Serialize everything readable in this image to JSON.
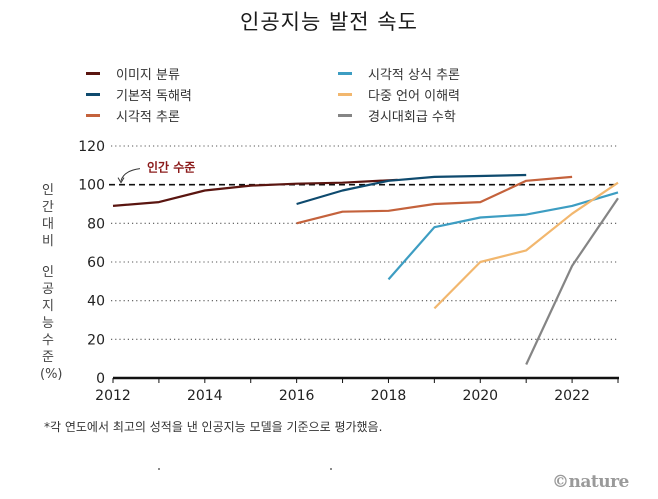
{
  "title": "인공지능 발전 속도",
  "footnote": "*각 연도에서 최고의 성적을 낸 인공지능 모델을 기준으로 평가했음.",
  "credit": "©nature",
  "chart_data": {
    "type": "line",
    "title": "인공지능 발전 속도",
    "xlabel": "",
    "ylabel": "인간대비 인공지능수준(%)",
    "ylabel_chars": [
      "인",
      "간",
      "대",
      "비",
      "",
      "인",
      "공",
      "지",
      "능",
      "수",
      "준",
      "(%)"
    ],
    "xlim": [
      2012,
      2023
    ],
    "ylim": [
      0,
      120
    ],
    "x_ticks": [
      2012,
      2013,
      2014,
      2015,
      2016,
      2017,
      2018,
      2019,
      2020,
      2021,
      2022,
      2023
    ],
    "x_tick_labels": [
      "2012",
      "2014",
      "2016",
      "2018",
      "2020",
      "2022"
    ],
    "x_tick_label_values": [
      2012,
      2014,
      2016,
      2018,
      2020,
      2022
    ],
    "y_ticks": [
      0,
      20,
      40,
      60,
      80,
      100,
      120
    ],
    "y_tick_labels": [
      "0",
      "20",
      "40",
      "60",
      "80",
      "100",
      "120"
    ],
    "grid": "horizontal-dotted",
    "reference_line": {
      "y": 100,
      "label": "인간 수준",
      "color": "#8b1a1a"
    },
    "legend_position": "top",
    "series": [
      {
        "name": "이미지 분류",
        "color": "#5a1510",
        "x": [
          2012,
          2013,
          2014,
          2015,
          2016,
          2017,
          2018.2
        ],
        "y": [
          89,
          91,
          97,
          99.5,
          100.5,
          101,
          102.5
        ]
      },
      {
        "name": "기본적 독해력",
        "color": "#0e4a6e",
        "x": [
          2016,
          2017,
          2018,
          2019,
          2020,
          2021
        ],
        "y": [
          90,
          97,
          102,
          104,
          104.5,
          105
        ]
      },
      {
        "name": "시각적 추론",
        "color": "#c4623c",
        "x": [
          2016,
          2017,
          2018,
          2019,
          2020,
          2021,
          2022
        ],
        "y": [
          80,
          86,
          86.5,
          90,
          91,
          102,
          104
        ]
      },
      {
        "name": "시각적 상식 추론",
        "color": "#3d9dc2",
        "x": [
          2018,
          2019,
          2020,
          2021,
          2022,
          2023
        ],
        "y": [
          51,
          78,
          83,
          84.5,
          89,
          96
        ]
      },
      {
        "name": "다중 언어 이해력",
        "color": "#f2b76e",
        "x": [
          2019,
          2020,
          2021,
          2022,
          2023
        ],
        "y": [
          36,
          60,
          66,
          85,
          101
        ]
      },
      {
        "name": "경시대회급 수학",
        "color": "#858585",
        "x": [
          2021,
          2022,
          2023
        ],
        "y": [
          7,
          58,
          93
        ]
      }
    ]
  }
}
